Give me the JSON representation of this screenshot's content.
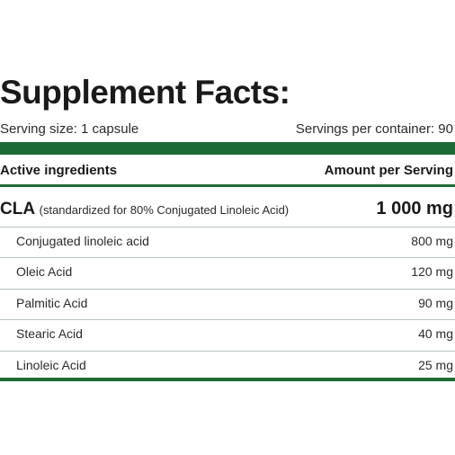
{
  "header": {
    "title": "Supplement Facts:",
    "serving_size": "Serving size: 1 capsule",
    "servings_per_container": "Servings per container: 90"
  },
  "table": {
    "columns": [
      "Active ingredients",
      "Amount per Serving"
    ],
    "main": {
      "name": "CLA",
      "note": "(standardized for 80% Conjugated Linoleic Acid)",
      "amount": "1 000 mg"
    },
    "rows": [
      [
        "Conjugated linoleic acid",
        "800 mg"
      ],
      [
        "Oleic Acid",
        "120 mg"
      ],
      [
        "Palmitic Acid",
        "90 mg"
      ],
      [
        "Stearic Acid",
        "40 mg"
      ],
      [
        "Linoleic Acid",
        "25 mg"
      ]
    ]
  }
}
